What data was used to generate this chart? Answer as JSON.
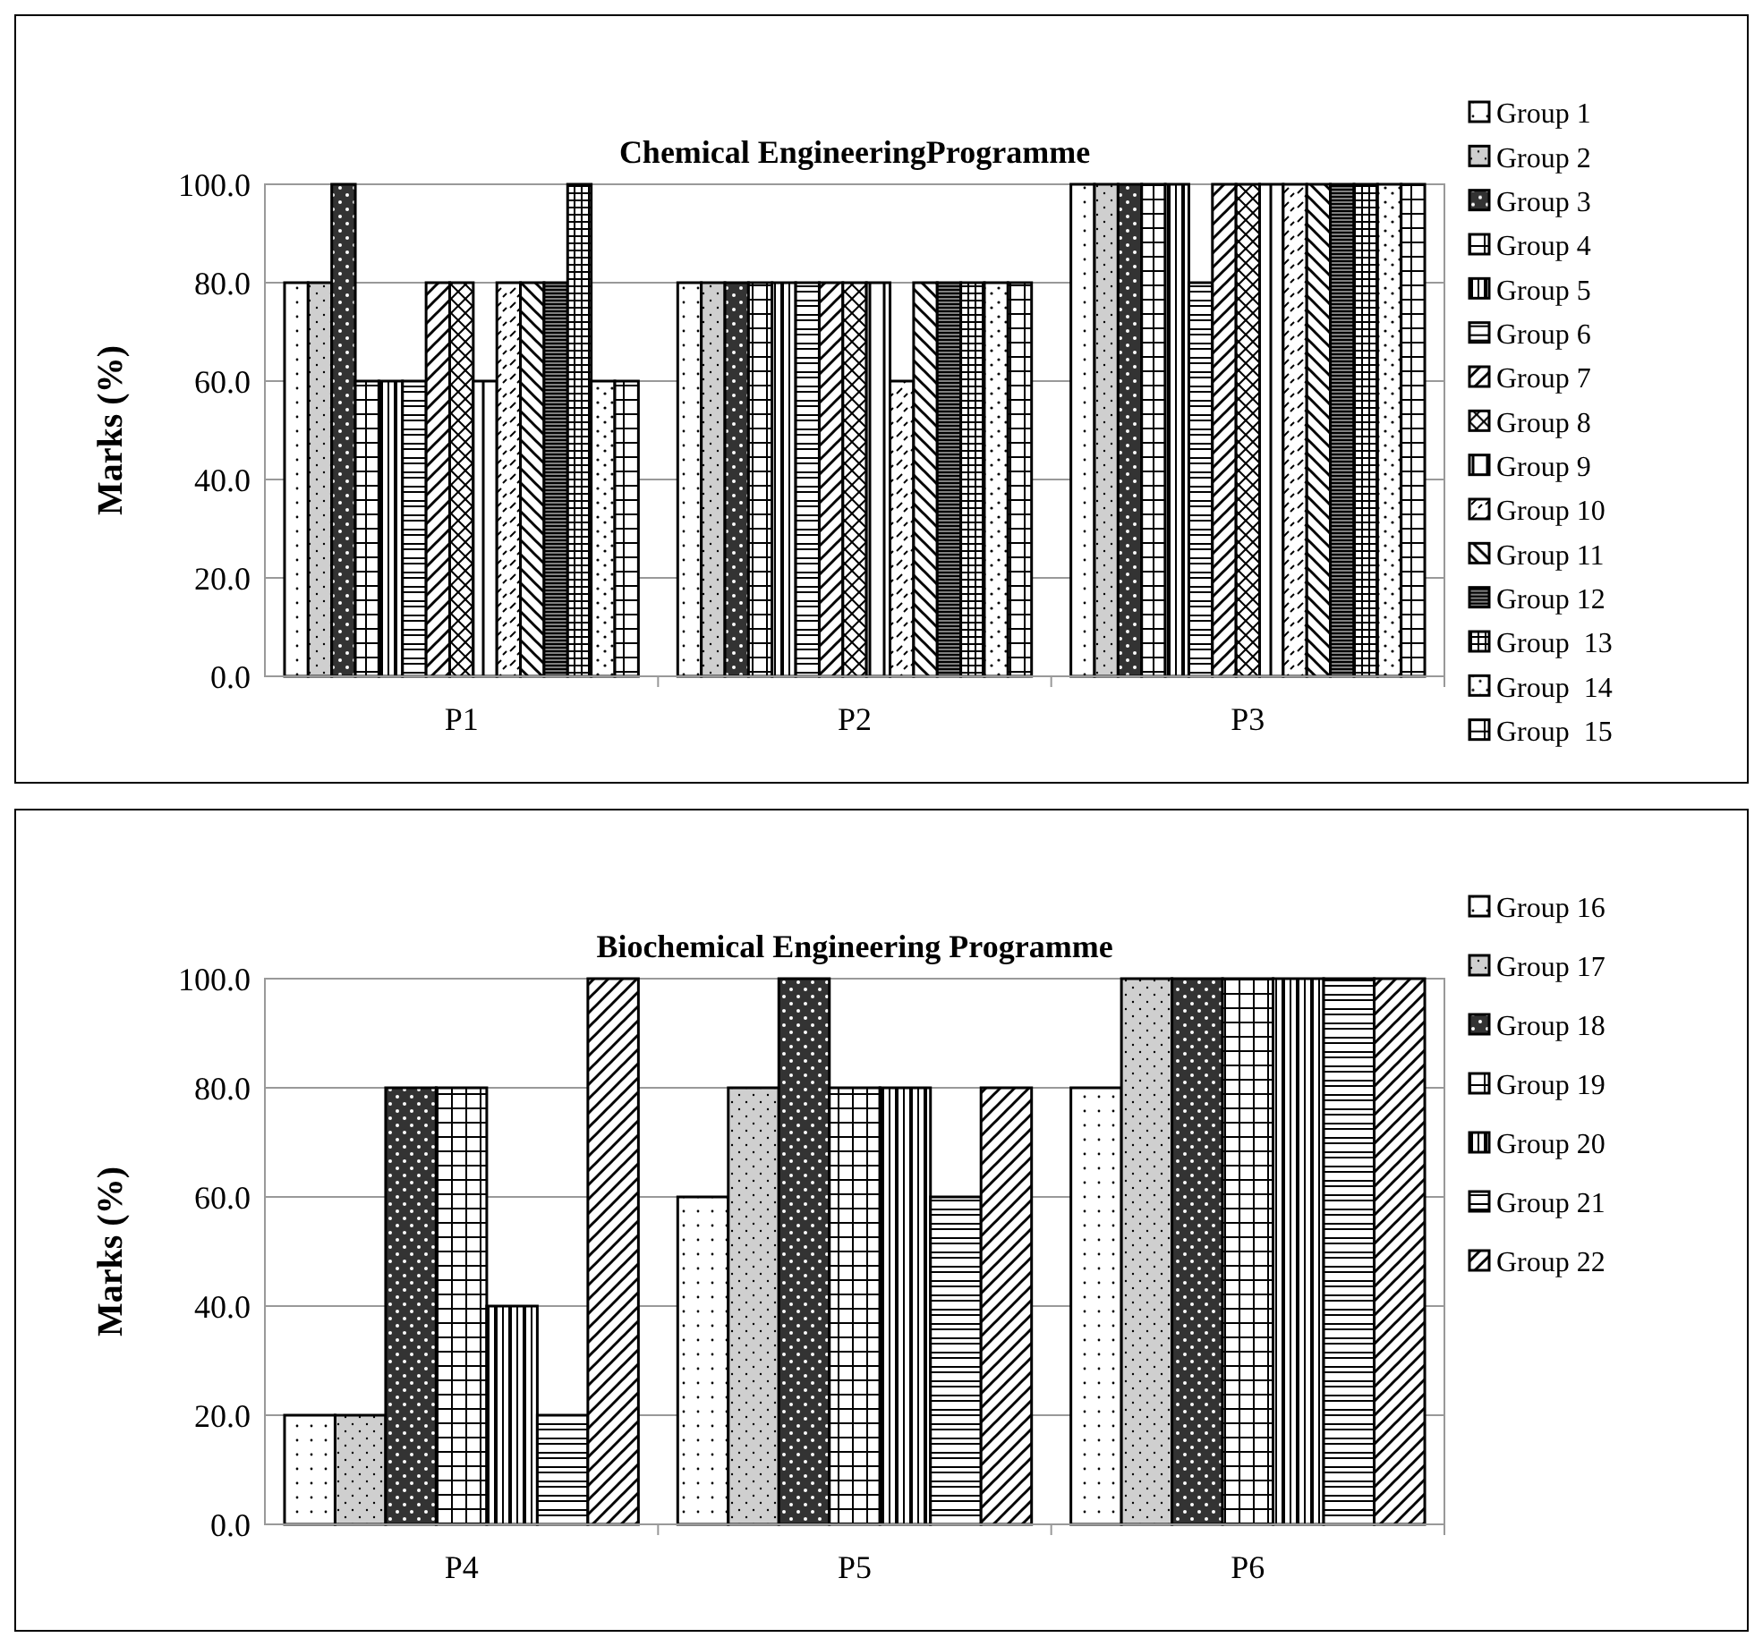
{
  "chart_data": [
    {
      "type": "bar",
      "title": "Chemical EngineeringProgramme",
      "ylabel": "Marks (%)",
      "categories": [
        "P1",
        "P2",
        "P3"
      ],
      "ylim": [
        0,
        100
      ],
      "yticks": [
        {
          "value": 0,
          "label": "0.0"
        },
        {
          "value": 20,
          "label": "20.0"
        },
        {
          "value": 40,
          "label": "40.0"
        },
        {
          "value": 60,
          "label": "60.0"
        },
        {
          "value": 80,
          "label": "80.0"
        },
        {
          "value": 100,
          "label": "100.0"
        }
      ],
      "grid": "y",
      "legend": "right",
      "series": [
        {
          "name": "Group 1",
          "color": "#000000",
          "values": [
            80,
            80,
            100
          ]
        },
        {
          "name": "Group 2",
          "color": "#000000",
          "values": [
            80,
            80,
            100
          ]
        },
        {
          "name": "Group 3",
          "color": "#000000",
          "values": [
            100,
            80,
            100
          ]
        },
        {
          "name": "Group 4",
          "color": "#000000",
          "values": [
            60,
            80,
            100
          ]
        },
        {
          "name": "Group 5",
          "color": "#000000",
          "values": [
            60,
            80,
            100
          ]
        },
        {
          "name": "Group 6",
          "color": "#000000",
          "values": [
            60,
            80,
            80
          ]
        },
        {
          "name": "Group 7",
          "color": "#000000",
          "values": [
            80,
            80,
            100
          ]
        },
        {
          "name": "Group 8",
          "color": "#000000",
          "values": [
            80,
            80,
            100
          ]
        },
        {
          "name": "Group 9",
          "color": "#000000",
          "values": [
            60,
            80,
            100
          ]
        },
        {
          "name": "Group 10",
          "color": "#000000",
          "values": [
            80,
            60,
            100
          ]
        },
        {
          "name": "Group 11",
          "color": "#000000",
          "values": [
            80,
            80,
            100
          ]
        },
        {
          "name": "Group 12",
          "color": "#000000",
          "values": [
            80,
            80,
            100
          ]
        },
        {
          "name": "Group  13",
          "color": "#000000",
          "values": [
            100,
            80,
            100
          ]
        },
        {
          "name": "Group  14",
          "color": "#000000",
          "values": [
            60,
            80,
            100
          ]
        },
        {
          "name": "Group  15",
          "color": "#000000",
          "values": [
            60,
            80,
            100
          ]
        }
      ]
    },
    {
      "type": "bar",
      "title": "Biochemical Engineering Programme",
      "ylabel": "Marks (%)",
      "categories": [
        "P4",
        "P5",
        "P6"
      ],
      "ylim": [
        0,
        100
      ],
      "yticks": [
        {
          "value": 0,
          "label": "0.0"
        },
        {
          "value": 20,
          "label": "20.0"
        },
        {
          "value": 40,
          "label": "40.0"
        },
        {
          "value": 60,
          "label": "60.0"
        },
        {
          "value": 80,
          "label": "80.0"
        },
        {
          "value": 100,
          "label": "100.0"
        }
      ],
      "grid": "y",
      "legend": "right",
      "series": [
        {
          "name": "Group 16",
          "color": "#000000",
          "values": [
            20,
            60,
            80
          ]
        },
        {
          "name": "Group 17",
          "color": "#000000",
          "values": [
            20,
            80,
            100
          ]
        },
        {
          "name": "Group 18",
          "color": "#000000",
          "values": [
            80,
            100,
            100
          ]
        },
        {
          "name": "Group 19",
          "color": "#000000",
          "values": [
            80,
            80,
            100
          ]
        },
        {
          "name": "Group 20",
          "color": "#000000",
          "values": [
            40,
            80,
            100
          ]
        },
        {
          "name": "Group 21",
          "color": "#000000",
          "values": [
            20,
            60,
            100
          ]
        },
        {
          "name": "Group 22",
          "color": "#000000",
          "values": [
            100,
            80,
            100
          ]
        }
      ]
    }
  ]
}
